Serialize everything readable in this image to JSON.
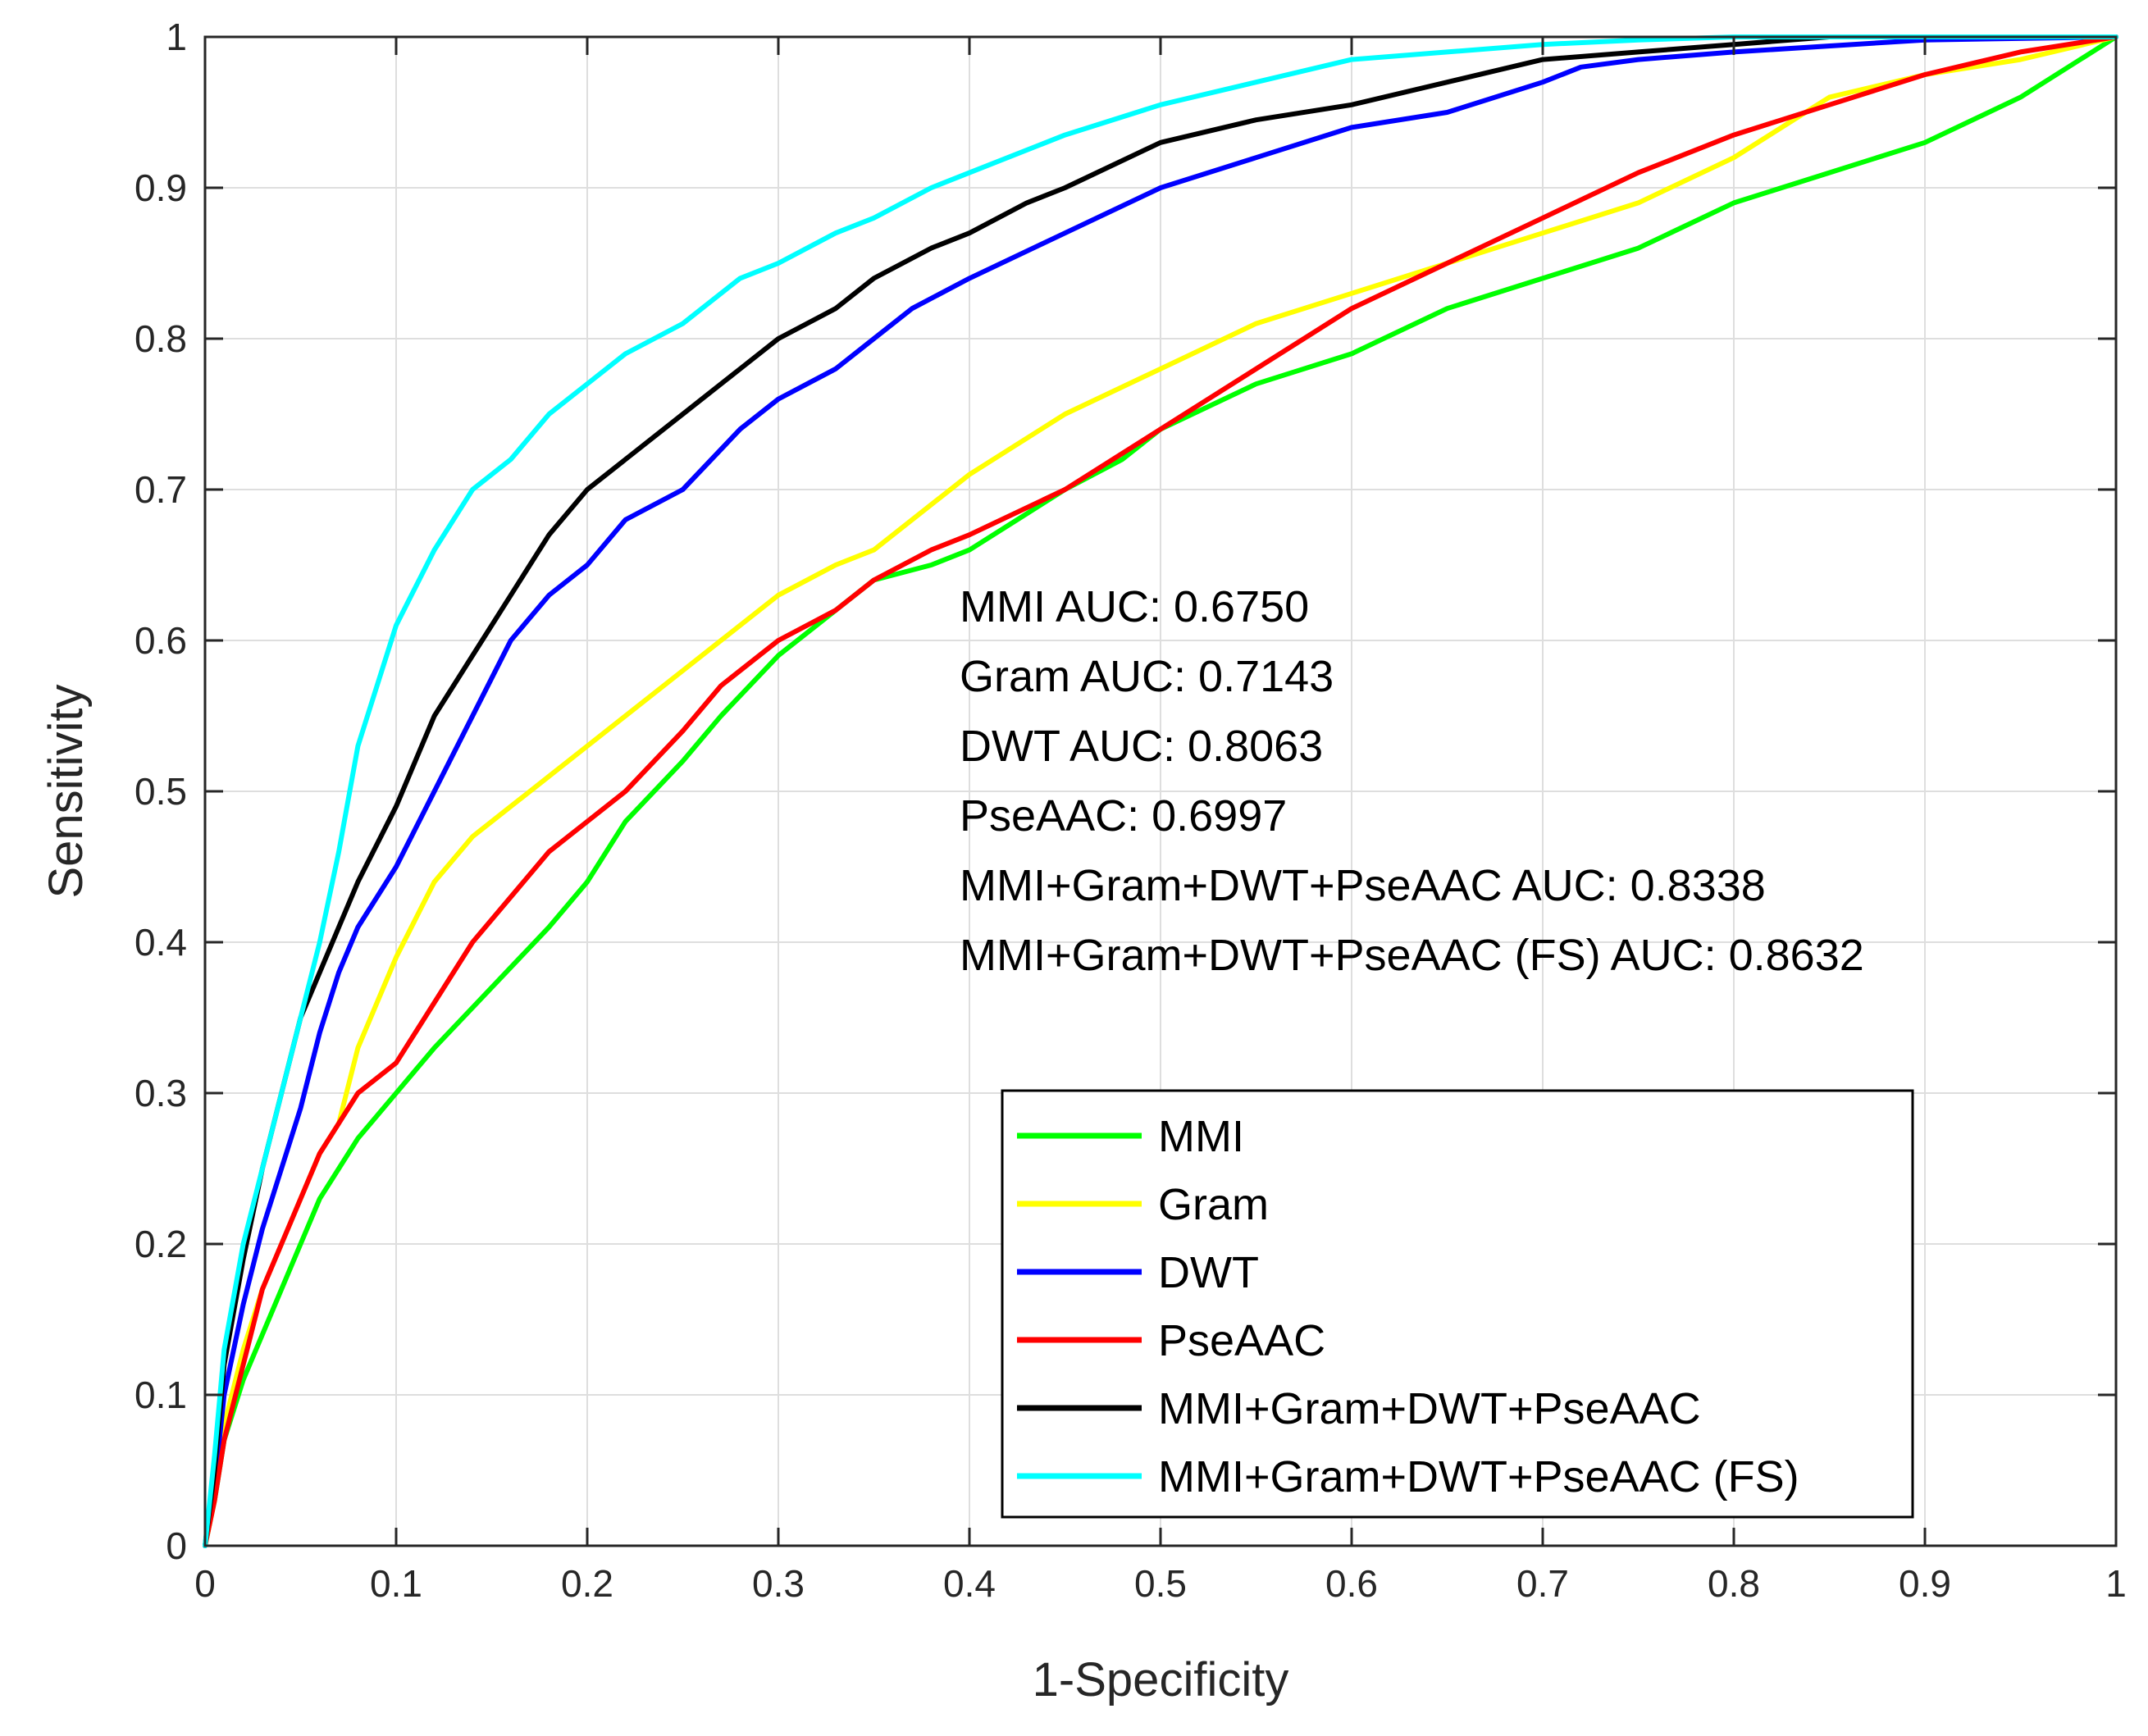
{
  "chart_data": {
    "type": "line",
    "title": "",
    "xlabel": "1-Specificity",
    "ylabel": "Sensitivity",
    "xlim": [
      0,
      1
    ],
    "ylim": [
      0,
      1
    ],
    "xticks": [
      "0",
      "0.1",
      "0.2",
      "0.3",
      "0.4",
      "0.5",
      "0.6",
      "0.7",
      "0.8",
      "0.9",
      "1"
    ],
    "yticks": [
      "0",
      "0.1",
      "0.2",
      "0.3",
      "0.4",
      "0.5",
      "0.6",
      "0.7",
      "0.8",
      "0.9",
      "1"
    ],
    "grid": true,
    "legend_position": "bottom-right",
    "annotations": [
      "MMI AUC: 0.6750",
      "Gram AUC: 0.7143",
      "DWT AUC: 0.8063",
      "PseAAC: 0.6997",
      "MMI+Gram+DWT+PseAAC AUC: 0.8338",
      "MMI+Gram+DWT+PseAAC (FS) AUC: 0.8632"
    ],
    "series": [
      {
        "name": "MMI",
        "color": "#00ff00",
        "x": [
          0,
          0.005,
          0.01,
          0.02,
          0.03,
          0.04,
          0.05,
          0.06,
          0.07,
          0.08,
          0.1,
          0.12,
          0.15,
          0.18,
          0.2,
          0.22,
          0.25,
          0.27,
          0.3,
          0.33,
          0.35,
          0.38,
          0.4,
          0.45,
          0.48,
          0.5,
          0.55,
          0.6,
          0.65,
          0.7,
          0.75,
          0.8,
          0.85,
          0.9,
          0.95,
          1.0
        ],
        "y": [
          0,
          0.03,
          0.07,
          0.11,
          0.14,
          0.17,
          0.2,
          0.23,
          0.25,
          0.27,
          0.3,
          0.33,
          0.37,
          0.41,
          0.44,
          0.48,
          0.52,
          0.55,
          0.59,
          0.62,
          0.64,
          0.65,
          0.66,
          0.7,
          0.72,
          0.74,
          0.77,
          0.79,
          0.82,
          0.84,
          0.86,
          0.89,
          0.91,
          0.93,
          0.96,
          1.0
        ]
      },
      {
        "name": "Gram",
        "color": "#ffff00",
        "x": [
          0,
          0.005,
          0.01,
          0.02,
          0.03,
          0.04,
          0.05,
          0.06,
          0.07,
          0.08,
          0.1,
          0.12,
          0.14,
          0.16,
          0.18,
          0.2,
          0.22,
          0.25,
          0.27,
          0.3,
          0.33,
          0.35,
          0.38,
          0.4,
          0.45,
          0.5,
          0.55,
          0.6,
          0.65,
          0.7,
          0.75,
          0.8,
          0.85,
          0.9,
          0.95,
          1.0
        ],
        "y": [
          0,
          0.03,
          0.08,
          0.13,
          0.17,
          0.2,
          0.23,
          0.26,
          0.28,
          0.33,
          0.39,
          0.44,
          0.47,
          0.49,
          0.51,
          0.53,
          0.55,
          0.58,
          0.6,
          0.63,
          0.65,
          0.66,
          0.69,
          0.71,
          0.75,
          0.78,
          0.81,
          0.83,
          0.85,
          0.87,
          0.89,
          0.92,
          0.96,
          0.975,
          0.985,
          1.0
        ]
      },
      {
        "name": "DWT",
        "color": "#0000ff",
        "x": [
          0,
          0.005,
          0.01,
          0.02,
          0.03,
          0.04,
          0.05,
          0.06,
          0.07,
          0.08,
          0.1,
          0.12,
          0.14,
          0.16,
          0.18,
          0.2,
          0.22,
          0.25,
          0.28,
          0.3,
          0.33,
          0.35,
          0.37,
          0.4,
          0.45,
          0.5,
          0.55,
          0.6,
          0.65,
          0.7,
          0.72,
          0.75,
          0.8,
          0.9,
          1.0
        ],
        "y": [
          0,
          0.04,
          0.1,
          0.16,
          0.21,
          0.25,
          0.29,
          0.34,
          0.38,
          0.41,
          0.45,
          0.5,
          0.55,
          0.6,
          0.63,
          0.65,
          0.68,
          0.7,
          0.74,
          0.76,
          0.78,
          0.8,
          0.82,
          0.84,
          0.87,
          0.9,
          0.92,
          0.94,
          0.95,
          0.97,
          0.98,
          0.985,
          0.99,
          0.998,
          1.0
        ]
      },
      {
        "name": "PseAAC",
        "color": "#ff0000",
        "x": [
          0,
          0.005,
          0.01,
          0.02,
          0.03,
          0.04,
          0.05,
          0.06,
          0.07,
          0.08,
          0.1,
          0.12,
          0.14,
          0.16,
          0.18,
          0.2,
          0.22,
          0.25,
          0.27,
          0.3,
          0.33,
          0.35,
          0.38,
          0.4,
          0.45,
          0.5,
          0.55,
          0.6,
          0.65,
          0.7,
          0.75,
          0.8,
          0.85,
          0.9,
          0.95,
          1.0
        ],
        "y": [
          0,
          0.03,
          0.07,
          0.12,
          0.17,
          0.2,
          0.23,
          0.26,
          0.28,
          0.3,
          0.32,
          0.36,
          0.4,
          0.43,
          0.46,
          0.48,
          0.5,
          0.54,
          0.57,
          0.6,
          0.62,
          0.64,
          0.66,
          0.67,
          0.7,
          0.74,
          0.78,
          0.82,
          0.85,
          0.88,
          0.91,
          0.935,
          0.955,
          0.975,
          0.99,
          1.0
        ]
      },
      {
        "name": "MMI+Gram+DWT+PseAAC",
        "color": "#000000",
        "x": [
          0,
          0.005,
          0.01,
          0.02,
          0.03,
          0.04,
          0.05,
          0.06,
          0.07,
          0.08,
          0.1,
          0.12,
          0.14,
          0.16,
          0.18,
          0.2,
          0.22,
          0.25,
          0.28,
          0.3,
          0.33,
          0.35,
          0.38,
          0.4,
          0.43,
          0.45,
          0.5,
          0.55,
          0.6,
          0.65,
          0.7,
          0.75,
          0.8,
          0.85,
          1.0
        ],
        "y": [
          0,
          0.05,
          0.12,
          0.19,
          0.25,
          0.3,
          0.35,
          0.38,
          0.41,
          0.44,
          0.49,
          0.55,
          0.59,
          0.63,
          0.67,
          0.7,
          0.72,
          0.75,
          0.78,
          0.8,
          0.82,
          0.84,
          0.86,
          0.87,
          0.89,
          0.9,
          0.93,
          0.945,
          0.955,
          0.97,
          0.985,
          0.99,
          0.995,
          1.0,
          1.0
        ]
      },
      {
        "name": "MMI+Gram+DWT+PseAAC (FS)",
        "color": "#00ffff",
        "x": [
          0,
          0.005,
          0.01,
          0.02,
          0.03,
          0.04,
          0.05,
          0.06,
          0.07,
          0.08,
          0.1,
          0.12,
          0.14,
          0.16,
          0.18,
          0.2,
          0.22,
          0.25,
          0.28,
          0.3,
          0.33,
          0.35,
          0.38,
          0.4,
          0.45,
          0.5,
          0.55,
          0.6,
          0.65,
          0.7,
          0.75,
          0.8,
          0.85,
          1.0
        ],
        "y": [
          0,
          0.06,
          0.13,
          0.2,
          0.25,
          0.3,
          0.35,
          0.4,
          0.46,
          0.53,
          0.61,
          0.66,
          0.7,
          0.72,
          0.75,
          0.77,
          0.79,
          0.81,
          0.84,
          0.85,
          0.87,
          0.88,
          0.9,
          0.91,
          0.935,
          0.955,
          0.97,
          0.985,
          0.99,
          0.995,
          0.998,
          1.0,
          1.0,
          1.0
        ]
      }
    ]
  }
}
